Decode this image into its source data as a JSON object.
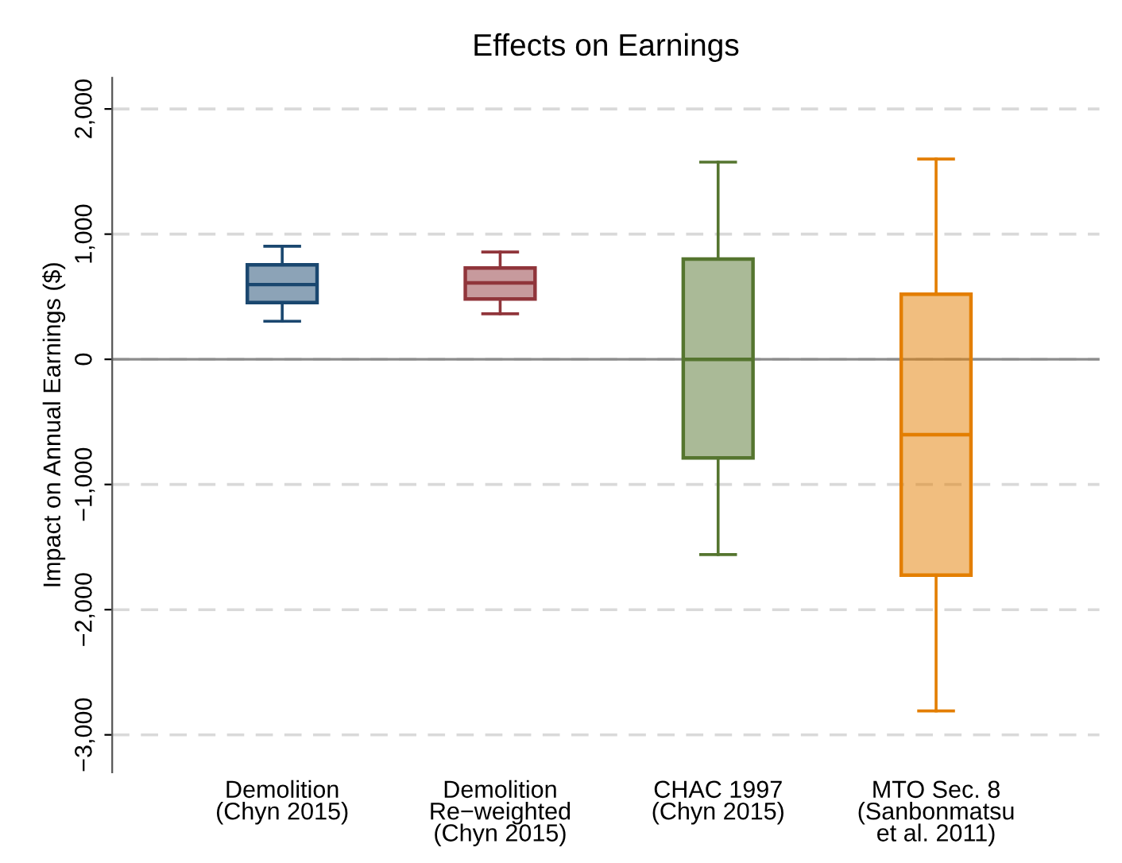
{
  "chart_data": {
    "type": "box",
    "title": "Effects on Earnings",
    "ylabel": "Impact on Annual Earnings ($)",
    "categories": [
      "Demolition\n(Chyn 2015)",
      "Demolition\nRe−weighted\n(Chyn 2015)",
      "CHAC 1997\n(Chyn 2015)",
      "MTO Sec. 8\n(Sanbonmatsu\net al. 2011)"
    ],
    "boxes": [
      {
        "low": 304,
        "q1": 453,
        "median": 597,
        "q3": 755,
        "high": 903
      },
      {
        "low": 364,
        "q1": 482,
        "median": 610,
        "q3": 730,
        "high": 857
      },
      {
        "low": -1560,
        "q1": -788,
        "median": 0,
        "q3": 801,
        "high": 1575
      },
      {
        "low": -2809,
        "q1": -1724,
        "median": -602,
        "q3": 520,
        "high": 1600
      }
    ],
    "colors": [
      "#1a476f",
      "#90353b",
      "#55752f",
      "#e37e00"
    ],
    "ylim": [
      -3300,
      2250
    ],
    "yticks": [
      {
        "value": -3000,
        "label": "−3,000"
      },
      {
        "value": -2000,
        "label": "−2,000"
      },
      {
        "value": -1000,
        "label": "−1,000"
      },
      {
        "value": 0,
        "label": "0"
      },
      {
        "value": 1000,
        "label": "1,000"
      },
      {
        "value": 2000,
        "label": "2,000"
      }
    ],
    "grid": "y",
    "ref_lines": [
      {
        "axis": "y",
        "value": 0,
        "color": "#8c8c8c",
        "line_style": "solid"
      }
    ]
  }
}
